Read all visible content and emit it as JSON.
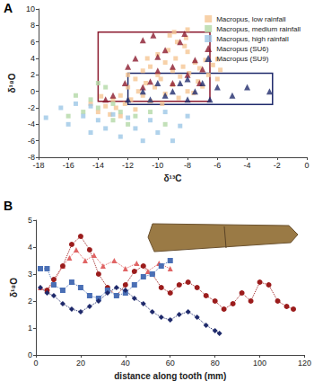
{
  "chart_data": [
    {
      "type": "scatter",
      "label": "A",
      "x_label": "δ¹³C",
      "y_label": "δ¹⁸O",
      "xlim": [
        -18,
        0
      ],
      "xticks": [
        -18,
        -16,
        -14,
        -12,
        -10,
        -8,
        -6,
        -4,
        -2,
        0
      ],
      "ylim": [
        -8,
        10
      ],
      "yticks": [
        -8,
        -6,
        -4,
        -2,
        0,
        2,
        4,
        6,
        8,
        10
      ],
      "legend": "top-right",
      "series": [
        {
          "name": "Macropus, low rainfall",
          "color": "#f5c593",
          "marker": "square",
          "values": [
            [
              -14,
              -2.5
            ],
            [
              -13.5,
              -1.8
            ],
            [
              -13.2,
              -2.8
            ],
            [
              -13,
              -1
            ],
            [
              -12.8,
              -2
            ],
            [
              -12.5,
              -0.5
            ],
            [
              -12.2,
              -1.5
            ],
            [
              -12,
              0.5
            ],
            [
              -11.8,
              -1
            ],
            [
              -11.5,
              1.5
            ],
            [
              -11.3,
              0
            ],
            [
              -11,
              -0.5
            ],
            [
              -11,
              2.5
            ],
            [
              -10.8,
              1
            ],
            [
              -10.5,
              3
            ],
            [
              -10.5,
              -1.2
            ],
            [
              -10.2,
              0.5
            ],
            [
              -10,
              2
            ],
            [
              -10,
              4.5
            ],
            [
              -9.8,
              1.5
            ],
            [
              -9.5,
              3.5
            ],
            [
              -9.5,
              -0.3
            ],
            [
              -9.3,
              5
            ],
            [
              -9,
              2.5
            ],
            [
              -9,
              0.8
            ],
            [
              -8.8,
              4
            ],
            [
              -8.7,
              6
            ],
            [
              -8.5,
              1.8
            ],
            [
              -8.3,
              3
            ],
            [
              -8.2,
              5.5
            ],
            [
              -8,
              0
            ],
            [
              -8.1,
              6.5
            ],
            [
              -7.9,
              2.2
            ],
            [
              -8,
              4.8
            ],
            [
              -8,
              7.5
            ],
            [
              -7.5,
              3.5
            ],
            [
              -7.3,
              1.2
            ],
            [
              -7.2,
              2.8
            ],
            [
              -7,
              0.6
            ],
            [
              -6.8,
              3.8
            ],
            [
              -6.6,
              2
            ],
            [
              -6.3,
              3.2
            ],
            [
              -6,
              1.5
            ],
            [
              -6,
              3.9
            ],
            [
              -5.8,
              2.6
            ],
            [
              -11.5,
              -2.2
            ],
            [
              -12.5,
              -3
            ],
            [
              -9.7,
              -1.5
            ],
            [
              -8.6,
              -0.8
            ],
            [
              -7.6,
              -0.2
            ],
            [
              -10.7,
              4
            ],
            [
              -9.2,
              6.8
            ],
            [
              -8.9,
              7.2
            ],
            [
              -13.8,
              -0.6
            ],
            [
              -14.5,
              -1.5
            ],
            [
              -12,
              2
            ]
          ]
        },
        {
          "name": "Macropus, medium rainfall",
          "color": "#b3d8a6",
          "marker": "square",
          "values": [
            [
              -16,
              -3
            ],
            [
              -15,
              -2.5
            ],
            [
              -14.5,
              -1
            ],
            [
              -14,
              -2
            ],
            [
              -13.5,
              0.5
            ],
            [
              -13,
              -3.5
            ],
            [
              -12.5,
              -2.5
            ],
            [
              -12,
              -4
            ],
            [
              -11.5,
              -3
            ],
            [
              -14,
              1
            ],
            [
              -13,
              -1.5
            ],
            [
              -10.5,
              -2.5
            ],
            [
              -9.5,
              -4
            ],
            [
              -15.5,
              -0.5
            ]
          ]
        },
        {
          "name": "Macropus, high rainfall",
          "color": "#9cc7e6",
          "marker": "square",
          "values": [
            [
              -17.5,
              -3.2
            ],
            [
              -16.5,
              -2
            ],
            [
              -16,
              -4
            ],
            [
              -15.5,
              -1.5
            ],
            [
              -15,
              -3
            ],
            [
              -14.5,
              -5
            ],
            [
              -14,
              -3.5
            ],
            [
              -13.5,
              -4.5
            ],
            [
              -13,
              -2.8
            ],
            [
              -12.5,
              -5.5
            ],
            [
              -12,
              -3.2
            ],
            [
              -11.5,
              -4.5
            ],
            [
              -11,
              -6
            ],
            [
              -10.5,
              -3.5
            ],
            [
              -10,
              -5
            ],
            [
              -9.5,
              -2.5
            ],
            [
              -9,
              -6
            ],
            [
              -8.5,
              -4.2
            ],
            [
              -8,
              -3
            ],
            [
              -14.5,
              -1.8
            ]
          ]
        },
        {
          "name": "Macropus (SU6)",
          "color": "#8b1a2e",
          "marker": "triangle",
          "values": [
            [
              -13.5,
              -1
            ],
            [
              -13,
              -0.5
            ],
            [
              -12.2,
              1
            ],
            [
              -12,
              3
            ],
            [
              -11.5,
              4
            ],
            [
              -11,
              0.5
            ],
            [
              -11,
              6.2
            ],
            [
              -10.5,
              1.2
            ],
            [
              -10,
              2.5
            ],
            [
              -10,
              4.2
            ],
            [
              -9.5,
              5
            ],
            [
              -9,
              1
            ],
            [
              -9,
              3
            ],
            [
              -8.5,
              6
            ],
            [
              -8.2,
              7
            ],
            [
              -8,
              2
            ],
            [
              -7.5,
              3.8
            ],
            [
              -7,
              2.7
            ],
            [
              -7.2,
              1
            ],
            [
              -10.3,
              6.8
            ]
          ]
        },
        {
          "name": "Macropus (SU9)",
          "color": "#1f2a6b",
          "marker": "triangle",
          "values": [
            [
              -12,
              -1
            ],
            [
              -11,
              0
            ],
            [
              -10.5,
              -1
            ],
            [
              -10,
              1
            ],
            [
              -9.5,
              -0.5
            ],
            [
              -9,
              0
            ],
            [
              -8.5,
              1
            ],
            [
              -8,
              1.5
            ],
            [
              -8,
              -1
            ],
            [
              -7.5,
              0
            ],
            [
              -7,
              1
            ],
            [
              -6.5,
              -1
            ],
            [
              -6,
              0.5
            ],
            [
              -5,
              -0.5
            ],
            [
              -4,
              0.5
            ],
            [
              -2.5,
              0
            ]
          ]
        }
      ],
      "boxes": [
        {
          "color": "#8b1a2e",
          "xlim": [
            -14,
            -6.5
          ],
          "ylim": [
            -1.2,
            7.2
          ]
        },
        {
          "color": "#1f2a6b",
          "xlim": [
            -12,
            -2.3
          ],
          "ylim": [
            -1.6,
            2.2
          ]
        }
      ]
    },
    {
      "type": "line",
      "label": "B",
      "x_label": "distance along tooth (mm)",
      "y_label": "δ¹⁸O",
      "xlim": [
        0,
        120
      ],
      "xticks": [
        0,
        20,
        40,
        60,
        80,
        100,
        120
      ],
      "ylim": [
        0,
        5
      ],
      "yticks": [
        0,
        1,
        2,
        3,
        4,
        5
      ],
      "series": [
        {
          "color": "#e06464",
          "marker": "triangle",
          "line_style": "dotted",
          "x": [
            2,
            5,
            8,
            12,
            15,
            18,
            22,
            26,
            30,
            35,
            40,
            45,
            50,
            55,
            60
          ],
          "values": [
            2.5,
            2.4,
            2.7,
            3.3,
            3.6,
            3.9,
            3.5,
            3.7,
            3.3,
            3.5,
            3.2,
            3.4,
            3.1,
            3.4,
            3.2
          ]
        },
        {
          "color": "#9b1c1c",
          "marker": "circle",
          "line_style": "dotted",
          "x": [
            5,
            8,
            12,
            16,
            20,
            24,
            28,
            32,
            36,
            40,
            44,
            48,
            52,
            56,
            60,
            64,
            68,
            72,
            76,
            80,
            84,
            88,
            92,
            96,
            100,
            104,
            108,
            112,
            115
          ],
          "values": [
            2.4,
            2.8,
            3.3,
            4.1,
            4.4,
            3.9,
            3.0,
            2.5,
            2.2,
            2.6,
            3.1,
            3.3,
            3.0,
            2.5,
            2.3,
            2.6,
            2.7,
            2.5,
            2.2,
            2.0,
            1.7,
            1.9,
            2.3,
            2.0,
            2.7,
            2.6,
            2.0,
            1.8,
            1.7
          ]
        },
        {
          "color": "#4a6fb5",
          "marker": "square",
          "line_style": "dotted",
          "x": [
            2,
            5,
            8,
            12,
            16,
            20,
            24,
            28,
            32,
            36,
            40,
            44,
            48,
            52,
            56,
            60
          ],
          "values": [
            3.2,
            3.2,
            2.6,
            2.4,
            2.7,
            2.5,
            2.2,
            2.1,
            2.4,
            2.2,
            2.3,
            2.6,
            2.9,
            3.0,
            3.3,
            3.5
          ]
        },
        {
          "color": "#1f2a6b",
          "marker": "diamond",
          "line_style": "dotted",
          "x": [
            2,
            5,
            8,
            12,
            16,
            20,
            24,
            28,
            32,
            36,
            40,
            44,
            48,
            52,
            56,
            60,
            64,
            68,
            72,
            76,
            80,
            82
          ],
          "values": [
            2.5,
            2.3,
            2.2,
            1.9,
            1.7,
            1.6,
            1.8,
            2.0,
            2.3,
            2.5,
            2.4,
            2.1,
            1.9,
            1.6,
            1.4,
            1.3,
            1.5,
            1.6,
            1.4,
            1.1,
            0.9,
            0.8
          ]
        }
      ]
    }
  ]
}
